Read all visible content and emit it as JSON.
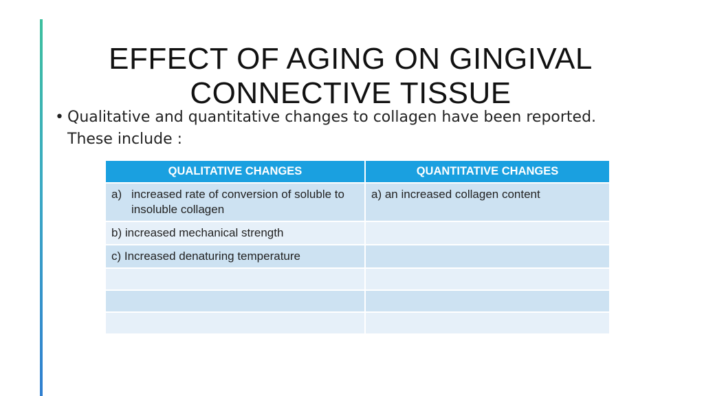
{
  "slide": {
    "title_lines": [
      "EFFECT OF AGING ON GINGIVAL",
      "CONNECTIVE TISSUE"
    ],
    "bullet": {
      "symbol": "•",
      "lines": [
        "Qualitative and quantitative changes to collagen have been reported.",
        "These include :"
      ]
    },
    "colors": {
      "accent_top": "#3cbf9e",
      "accent_bottom": "#2f7fd0",
      "table_header": "#1aa0e0",
      "row_dark": "#cde2f2",
      "row_light": "#e6f0f9"
    }
  },
  "table": {
    "headers": [
      "QUALITATIVE CHANGES",
      "QUANTITATIVE CHANGES"
    ],
    "rows": [
      {
        "qual_prefix": "a)",
        "qual_text": "increased rate of conversion of soluble to insoluble collagen",
        "quant": "a) an increased collagen content"
      },
      {
        "qual": "b) increased mechanical strength",
        "quant": ""
      },
      {
        "qual": "c) Increased denaturing temperature",
        "quant": ""
      },
      {
        "qual": "",
        "quant": ""
      },
      {
        "qual": "",
        "quant": ""
      },
      {
        "qual": "",
        "quant": ""
      }
    ]
  }
}
